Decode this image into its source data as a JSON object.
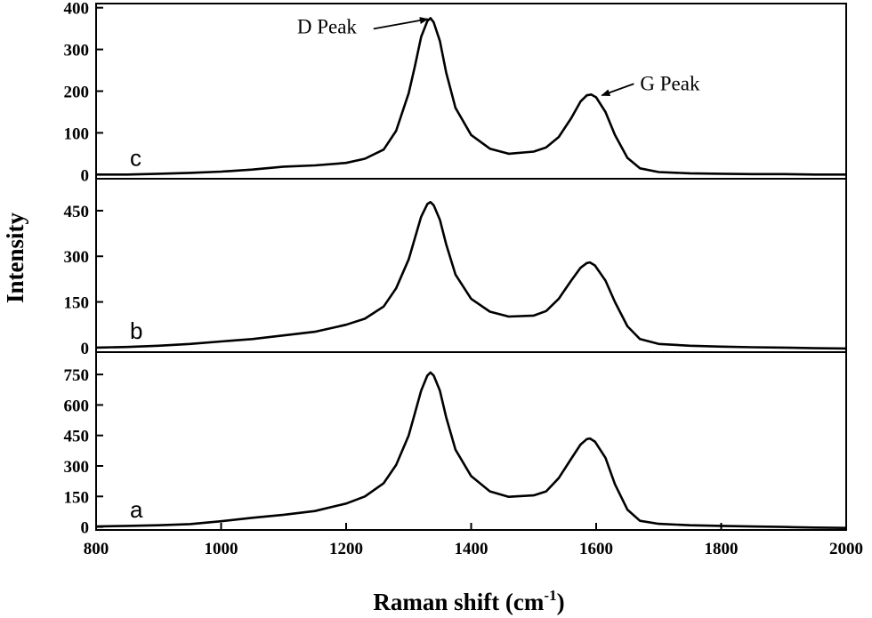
{
  "chart_data": {
    "type": "line",
    "xlabel": "Raman shift (cm",
    "xlabel_sup": "-1",
    "xlabel_suffix": ")",
    "ylabel": "Intensity",
    "xlim": [
      800,
      2000
    ],
    "xticks": [
      800,
      1000,
      1200,
      1400,
      1600,
      1800,
      2000
    ],
    "xtick_labels": [
      "800",
      "1000",
      "1200",
      "1400",
      "1600",
      "1800",
      "2000"
    ],
    "annotations": [
      {
        "text": "D Peak",
        "x": 1335,
        "y": 375,
        "panel": "c"
      },
      {
        "text": "G Peak",
        "x": 1592,
        "y": 192,
        "panel": "c"
      }
    ],
    "panels": [
      {
        "label": "c",
        "ylim": [
          -10,
          410
        ],
        "yticks": [
          0,
          100,
          200,
          300,
          400
        ],
        "ytick_labels": [
          "0",
          "100",
          "200",
          "300",
          "400"
        ],
        "series": [
          {
            "x": [
              800,
              850,
              900,
              950,
              1000,
              1050,
              1100,
              1150,
              1200,
              1230,
              1260,
              1280,
              1300,
              1310,
              1320,
              1330,
              1335,
              1340,
              1350,
              1360,
              1375,
              1400,
              1430,
              1460,
              1500,
              1520,
              1540,
              1560,
              1575,
              1585,
              1592,
              1600,
              1615,
              1630,
              1650,
              1670,
              1700,
              1750,
              1800,
              1850,
              1900,
              1950,
              2000
            ],
            "y": [
              0,
              0,
              2,
              4,
              7,
              12,
              19,
              22,
              28,
              38,
              60,
              105,
              195,
              260,
              330,
              368,
              375,
              365,
              320,
              245,
              160,
              95,
              62,
              50,
              55,
              65,
              90,
              135,
              175,
              190,
              192,
              185,
              150,
              95,
              40,
              15,
              6,
              3,
              2,
              1,
              1,
              0,
              0
            ]
          }
        ]
      },
      {
        "label": "b",
        "ylim": [
          -15,
          555
        ],
        "yticks": [
          0,
          150,
          300,
          450
        ],
        "ytick_labels": [
          "0",
          "150",
          "300",
          "450"
        ],
        "series": [
          {
            "x": [
              800,
              850,
              900,
              950,
              1000,
              1050,
              1100,
              1150,
              1200,
              1230,
              1260,
              1280,
              1300,
              1310,
              1320,
              1330,
              1335,
              1340,
              1350,
              1360,
              1375,
              1400,
              1430,
              1460,
              1500,
              1520,
              1540,
              1560,
              1575,
              1585,
              1590,
              1598,
              1615,
              1630,
              1650,
              1670,
              1700,
              1750,
              1800,
              1850,
              1900,
              1950,
              2000
            ],
            "y": [
              0,
              2,
              6,
              12,
              20,
              28,
              40,
              52,
              75,
              95,
              135,
              195,
              290,
              360,
              430,
              472,
              478,
              468,
              420,
              340,
              240,
              160,
              118,
              102,
              105,
              120,
              160,
              220,
              262,
              278,
              280,
              270,
              220,
              150,
              70,
              28,
              12,
              6,
              3,
              1,
              0,
              -2,
              -3
            ]
          }
        ]
      },
      {
        "label": "a",
        "ylim": [
          -15,
          860
        ],
        "yticks": [
          0,
          150,
          300,
          450,
          600,
          750
        ],
        "ytick_labels": [
          "0",
          "150",
          "300",
          "450",
          "600",
          "750"
        ],
        "series": [
          {
            "x": [
              800,
              850,
              900,
              950,
              1000,
              1050,
              1100,
              1150,
              1200,
              1230,
              1260,
              1280,
              1300,
              1310,
              1320,
              1330,
              1335,
              1340,
              1350,
              1360,
              1375,
              1400,
              1430,
              1460,
              1500,
              1520,
              1540,
              1560,
              1575,
              1585,
              1590,
              1598,
              1615,
              1630,
              1650,
              1670,
              1700,
              1750,
              1800,
              1850,
              1900,
              1950,
              2000
            ],
            "y": [
              2,
              5,
              8,
              14,
              28,
              45,
              60,
              78,
              115,
              150,
              215,
              305,
              450,
              560,
              670,
              745,
              760,
              745,
              670,
              540,
              380,
              250,
              175,
              148,
              155,
              175,
              240,
              335,
              405,
              432,
              435,
              420,
              340,
              210,
              85,
              30,
              15,
              8,
              5,
              2,
              0,
              -3,
              -5
            ]
          }
        ]
      }
    ]
  }
}
